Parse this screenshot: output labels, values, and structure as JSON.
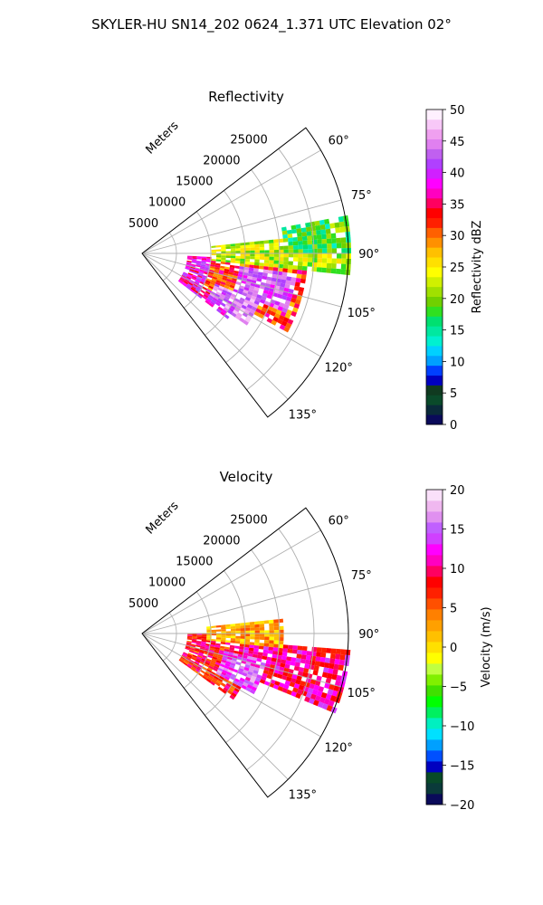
{
  "figure": {
    "title": "SKYLER-HU  SN14_202  0624_1.371 UTC Elevation 02°"
  },
  "chart_data": [
    {
      "type": "heatmap",
      "subtype": "polar-sector",
      "title": "Reflectivity",
      "theta_range_deg": [
        52.5,
        142.5
      ],
      "r_range_m": [
        0,
        30000
      ],
      "radial_ticks": [
        5000,
        10000,
        15000,
        20000,
        25000
      ],
      "radial_tick_labels": [
        "5000",
        "10000",
        "15000",
        "20000",
        "25000"
      ],
      "radial_axis_label": "Meters",
      "angle_ticks": [
        60,
        75,
        90,
        105,
        120,
        135
      ],
      "angle_tick_labels": [
        "60°",
        "75°",
        "90°",
        "105°",
        "120°",
        "135°"
      ],
      "grid": true,
      "colorbar": {
        "label": "Reflectivity dBZ",
        "vmin": 0,
        "vmax": 50,
        "ticks": [
          0,
          5,
          10,
          15,
          20,
          25,
          30,
          35,
          40,
          45,
          50
        ],
        "tick_labels": [
          "0",
          "5",
          "10",
          "15",
          "20",
          "25",
          "30",
          "35",
          "40",
          "45",
          "50"
        ],
        "colors": [
          "#0a0a5a",
          "#0a2a3a",
          "#0a4a2a",
          "#103a20",
          "#0000c0",
          "#0040ff",
          "#00a0ff",
          "#00d0ff",
          "#00f0d0",
          "#00e8a0",
          "#00e070",
          "#30e020",
          "#70d000",
          "#a0e000",
          "#d0f000",
          "#ffff00",
          "#ffe000",
          "#ffc000",
          "#ff9000",
          "#ff6000",
          "#ff2000",
          "#ff0000",
          "#ff0060",
          "#ff00c0",
          "#ff00ff",
          "#d020ff",
          "#b040ff",
          "#c060f0",
          "#e080f0",
          "#f0a0f0",
          "#f8c8f8",
          "#fff0ff"
        ]
      },
      "echo_regions": [
        {
          "theta": [
            93,
            128
          ],
          "r": [
            6000,
            15000
          ],
          "dbz": 38
        },
        {
          "theta": [
            96,
            118
          ],
          "r": [
            10000,
            24000
          ],
          "dbz": 32
        },
        {
          "theta": [
            84,
            96
          ],
          "r": [
            10000,
            30000
          ],
          "dbz": 22
        },
        {
          "theta": [
            98,
            112
          ],
          "r": [
            14000,
            22000
          ],
          "dbz": 42
        },
        {
          "theta": [
            112,
            125
          ],
          "r": [
            11000,
            18000
          ],
          "dbz": 44
        },
        {
          "theta": [
            80,
            90
          ],
          "r": [
            20000,
            30000
          ],
          "dbz": 18
        }
      ]
    },
    {
      "type": "heatmap",
      "subtype": "polar-sector",
      "title": "Velocity",
      "theta_range_deg": [
        52.5,
        142.5
      ],
      "r_range_m": [
        0,
        30000
      ],
      "radial_ticks": [
        5000,
        10000,
        15000,
        20000,
        25000
      ],
      "radial_tick_labels": [
        "5000",
        "10000",
        "15000",
        "20000",
        "25000"
      ],
      "radial_axis_label": "Meters",
      "angle_ticks": [
        60,
        75,
        90,
        105,
        120,
        135
      ],
      "angle_tick_labels": [
        "60°",
        "75°",
        "90°",
        "105°",
        "120°",
        "135°"
      ],
      "grid": true,
      "colorbar": {
        "label": "Velocity (m/s)",
        "vmin": -20,
        "vmax": 20,
        "ticks": [
          -20,
          -15,
          -10,
          -5,
          0,
          5,
          10,
          15,
          20
        ],
        "tick_labels": [
          "−20",
          "−15",
          "−10",
          "−5",
          "0",
          "5",
          "10",
          "15",
          "20"
        ],
        "colors": [
          "#0a0a5a",
          "#0a3a3a",
          "#084a28",
          "#0000c0",
          "#0050ff",
          "#00a0ff",
          "#00e0ff",
          "#00f0c0",
          "#00f060",
          "#00ff00",
          "#40e000",
          "#80f000",
          "#c0ff40",
          "#ffff00",
          "#ffe000",
          "#ffc000",
          "#ffa000",
          "#ff8000",
          "#ff5000",
          "#ff2000",
          "#ff0000",
          "#ff0060",
          "#ff00c0",
          "#ff00ff",
          "#d040ff",
          "#c060ff",
          "#e090f0",
          "#f0b8f0",
          "#fae0fa"
        ]
      },
      "echo_regions": [
        {
          "theta": [
            90,
            126
          ],
          "r": [
            6000,
            16000
          ],
          "velocity": 8
        },
        {
          "theta": [
            95,
            112
          ],
          "r": [
            14000,
            30000
          ],
          "velocity": 10
        },
        {
          "theta": [
            84,
            96
          ],
          "r": [
            9000,
            20000
          ],
          "velocity": 2
        },
        {
          "theta": [
            102,
            118
          ],
          "r": [
            12000,
            18000
          ],
          "velocity": 14
        }
      ]
    }
  ]
}
